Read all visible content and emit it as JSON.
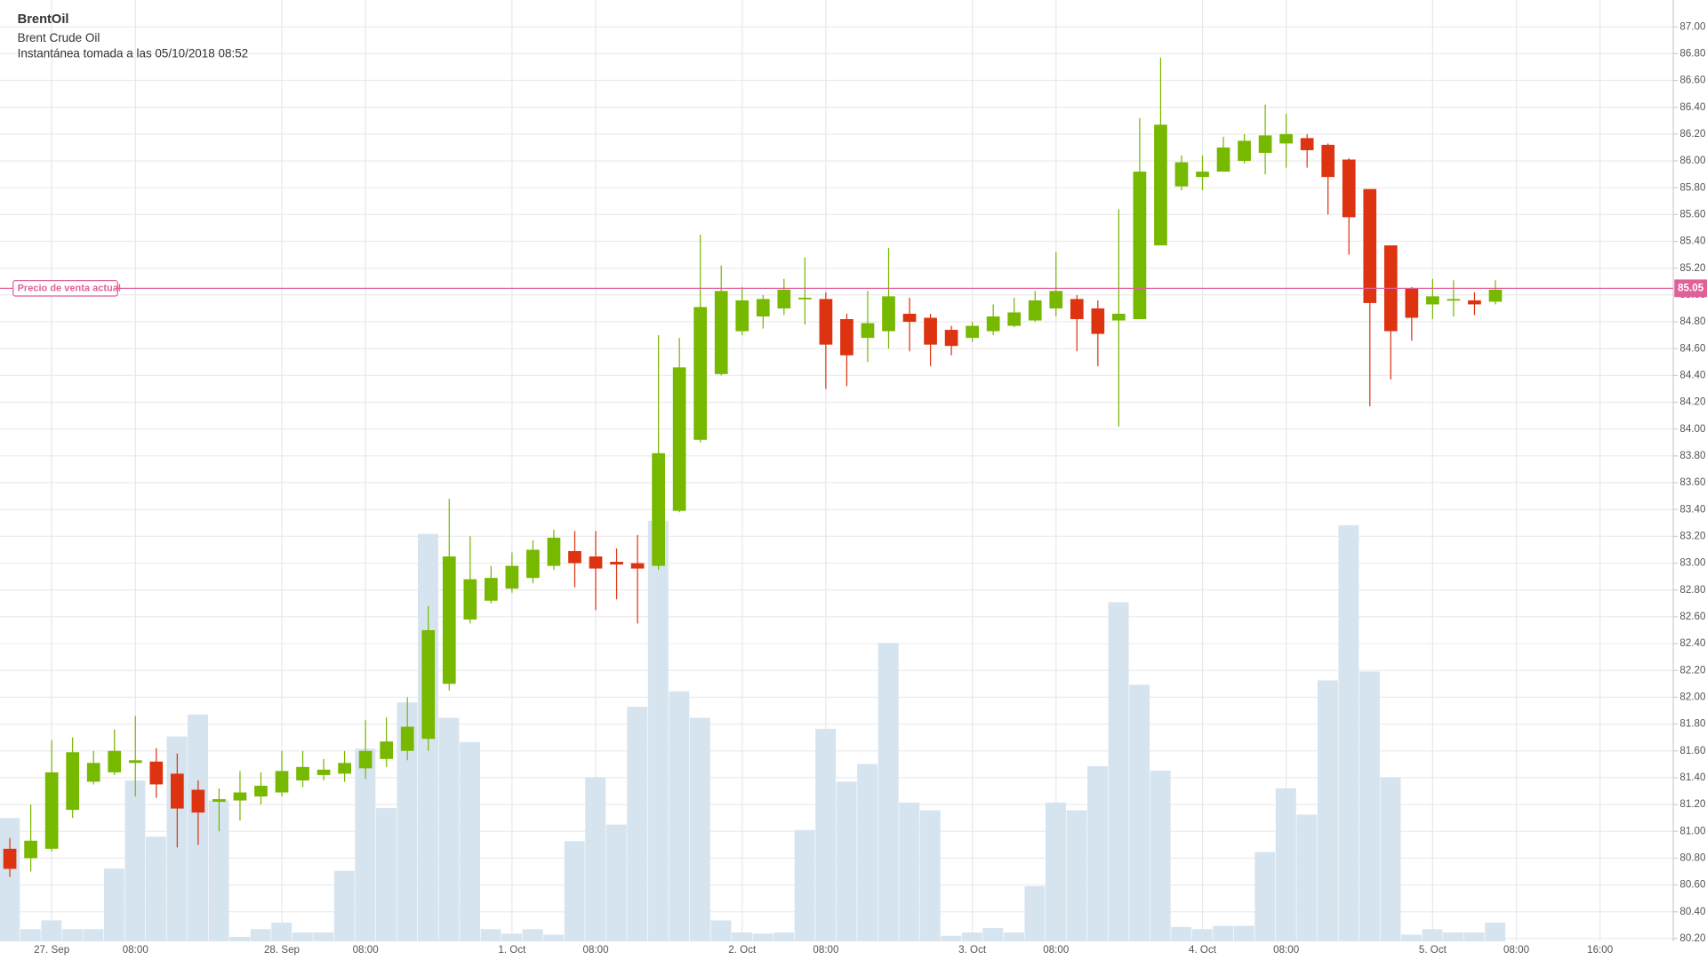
{
  "chart_data": {
    "type": "candlestick",
    "title": "BrentOil",
    "subtitle": "Brent Crude Oil",
    "snapshot": "Instantánea tomada a las 05/10/2018 08:52",
    "current_price": 85.05,
    "current_price_label": "Precio de venta actual",
    "current_price_color": "#e0609a",
    "up_color": "#77b800",
    "down_color": "#dd3311",
    "volume_color": "#d6e4f0",
    "grid": true,
    "xlim": [
      -0.47,
      79.5
    ],
    "xticks": [
      {
        "value": 2,
        "label": "27. Sep"
      },
      {
        "value": 6,
        "label": "08:00"
      },
      {
        "value": 13,
        "label": "28. Sep"
      },
      {
        "value": 17,
        "label": "08:00"
      },
      {
        "value": 24,
        "label": "1. Oct"
      },
      {
        "value": 28,
        "label": "08:00"
      },
      {
        "value": 35,
        "label": "2. Oct"
      },
      {
        "value": 39,
        "label": "08:00"
      },
      {
        "value": 46,
        "label": "3. Oct"
      },
      {
        "value": 50,
        "label": "08:00"
      },
      {
        "value": 57,
        "label": "4. Oct"
      },
      {
        "value": 61,
        "label": "08:00"
      },
      {
        "value": 68,
        "label": "5. Oct"
      },
      {
        "value": 72,
        "label": "08:00"
      },
      {
        "value": 76,
        "label": "16:00"
      }
    ],
    "ylim": [
      80.18,
      87.2
    ],
    "yticks": [
      {
        "value": 80.2,
        "label": "80.20"
      },
      {
        "value": 80.4,
        "label": "80.40"
      },
      {
        "value": 80.6,
        "label": "80.60"
      },
      {
        "value": 80.8,
        "label": "80.80"
      },
      {
        "value": 81,
        "label": "81.00"
      },
      {
        "value": 81.2,
        "label": "81.20"
      },
      {
        "value": 81.4,
        "label": "81.40"
      },
      {
        "value": 81.6,
        "label": "81.60"
      },
      {
        "value": 81.8,
        "label": "81.80"
      },
      {
        "value": 82,
        "label": "82.00"
      },
      {
        "value": 82.2,
        "label": "82.20"
      },
      {
        "value": 82.4,
        "label": "82.40"
      },
      {
        "value": 82.6,
        "label": "82.60"
      },
      {
        "value": 82.8,
        "label": "82.80"
      },
      {
        "value": 83,
        "label": "83.00"
      },
      {
        "value": 83.2,
        "label": "83.20"
      },
      {
        "value": 83.4,
        "label": "83.40"
      },
      {
        "value": 83.6,
        "label": "83.60"
      },
      {
        "value": 83.8,
        "label": "83.80"
      },
      {
        "value": 84,
        "label": "84.00"
      },
      {
        "value": 84.2,
        "label": "84.20"
      },
      {
        "value": 84.4,
        "label": "84.40"
      },
      {
        "value": 84.6,
        "label": "84.60"
      },
      {
        "value": 84.8,
        "label": "84.80"
      },
      {
        "value": 85,
        "label": "85.00"
      },
      {
        "value": 85.2,
        "label": "85.20"
      },
      {
        "value": 85.4,
        "label": "85.40"
      },
      {
        "value": 85.6,
        "label": "85.60"
      },
      {
        "value": 85.8,
        "label": "85.80"
      },
      {
        "value": 86,
        "label": "86.00"
      },
      {
        "value": 86.2,
        "label": "86.20"
      },
      {
        "value": 86.4,
        "label": "86.40"
      },
      {
        "value": 86.6,
        "label": "86.60"
      },
      {
        "value": 86.8,
        "label": "86.80"
      },
      {
        "value": 87,
        "label": "87.00"
      }
    ],
    "y2lim": [
      0,
      400
    ],
    "open": [
      80.87,
      80.8,
      80.87,
      81.16,
      81.37,
      81.44,
      81.51,
      81.52,
      81.43,
      81.31,
      81.22,
      81.23,
      81.26,
      81.29,
      81.38,
      81.42,
      81.43,
      81.47,
      81.54,
      81.6,
      81.69,
      82.1,
      82.58,
      82.72,
      82.81,
      82.89,
      82.98,
      83.09,
      83.05,
      83.01,
      83.0,
      82.98,
      83.39,
      83.92,
      84.41,
      84.73,
      84.84,
      84.9,
      84.97,
      84.97,
      84.82,
      84.68,
      84.73,
      84.86,
      84.83,
      84.74,
      84.68,
      84.73,
      84.77,
      84.81,
      84.9,
      84.97,
      84.9,
      84.81,
      84.82,
      85.37,
      85.81,
      85.88,
      85.92,
      86.0,
      86.06,
      86.13,
      86.17,
      86.12,
      86.01,
      85.79,
      85.37,
      85.05,
      84.93,
      84.96,
      84.96,
      84.95
    ],
    "high": [
      80.95,
      81.2,
      81.68,
      81.7,
      81.6,
      81.76,
      81.86,
      81.62,
      81.58,
      81.38,
      81.32,
      81.45,
      81.44,
      81.6,
      81.6,
      81.54,
      81.6,
      81.83,
      81.85,
      82.0,
      82.68,
      83.48,
      83.2,
      82.98,
      83.08,
      83.17,
      83.25,
      83.24,
      83.24,
      83.11,
      83.21,
      84.7,
      84.68,
      85.45,
      85.22,
      85.06,
      85.0,
      85.12,
      85.28,
      85.02,
      84.86,
      85.03,
      85.35,
      84.98,
      84.86,
      84.77,
      84.8,
      84.93,
      84.98,
      85.03,
      85.32,
      85.0,
      84.96,
      85.64,
      86.32,
      86.77,
      86.04,
      86.04,
      86.18,
      86.2,
      86.42,
      86.35,
      86.2,
      86.13,
      86.02,
      85.79,
      85.37,
      85.06,
      85.12,
      85.11,
      85.02,
      85.11
    ],
    "low": [
      80.66,
      80.7,
      80.85,
      81.1,
      81.35,
      81.42,
      81.26,
      81.25,
      80.88,
      80.9,
      81.0,
      81.08,
      81.2,
      81.26,
      81.33,
      81.38,
      81.37,
      81.39,
      81.48,
      81.53,
      81.6,
      82.05,
      82.55,
      82.7,
      82.78,
      82.85,
      82.95,
      82.82,
      82.65,
      82.73,
      82.55,
      82.95,
      83.38,
      83.9,
      84.4,
      84.7,
      84.75,
      84.85,
      84.78,
      84.3,
      84.32,
      84.5,
      84.6,
      84.58,
      84.47,
      84.55,
      84.65,
      84.7,
      84.76,
      84.8,
      84.84,
      84.58,
      84.47,
      84.02,
      84.82,
      85.37,
      85.78,
      85.78,
      85.92,
      85.98,
      85.9,
      85.95,
      85.95,
      85.6,
      85.3,
      84.17,
      84.37,
      84.66,
      84.82,
      84.84,
      84.85,
      84.93
    ],
    "close": [
      80.72,
      80.93,
      81.44,
      81.59,
      81.51,
      81.6,
      81.53,
      81.35,
      81.17,
      81.14,
      81.24,
      81.29,
      81.34,
      81.45,
      81.48,
      81.46,
      81.51,
      81.6,
      81.67,
      81.78,
      82.5,
      83.05,
      82.88,
      82.89,
      82.98,
      83.1,
      83.19,
      83.0,
      82.96,
      82.99,
      82.96,
      83.82,
      84.46,
      84.91,
      85.03,
      84.96,
      84.97,
      85.04,
      84.98,
      84.63,
      84.55,
      84.79,
      84.99,
      84.8,
      84.63,
      84.62,
      84.77,
      84.84,
      84.87,
      84.96,
      85.03,
      84.82,
      84.71,
      84.86,
      85.92,
      86.27,
      85.99,
      85.92,
      86.1,
      86.15,
      86.19,
      86.2,
      86.08,
      85.88,
      85.58,
      84.94,
      84.73,
      84.83,
      84.99,
      84.97,
      84.93,
      85.04
    ],
    "volume": [
      112,
      11,
      19,
      11,
      11,
      66,
      146,
      95,
      186,
      206,
      128,
      4,
      11,
      17,
      8,
      8,
      64,
      175,
      121,
      217,
      370,
      203,
      181,
      11,
      7,
      11,
      6,
      91,
      149,
      106,
      213,
      382,
      227,
      203,
      19,
      8,
      7,
      8,
      101,
      193,
      145,
      161,
      271,
      126,
      119,
      5,
      8,
      12,
      8,
      50,
      126,
      119,
      159,
      308,
      233,
      155,
      13,
      11,
      14,
      14,
      81,
      139,
      115,
      237,
      378,
      245,
      149,
      6,
      11,
      8,
      8,
      17
    ]
  }
}
